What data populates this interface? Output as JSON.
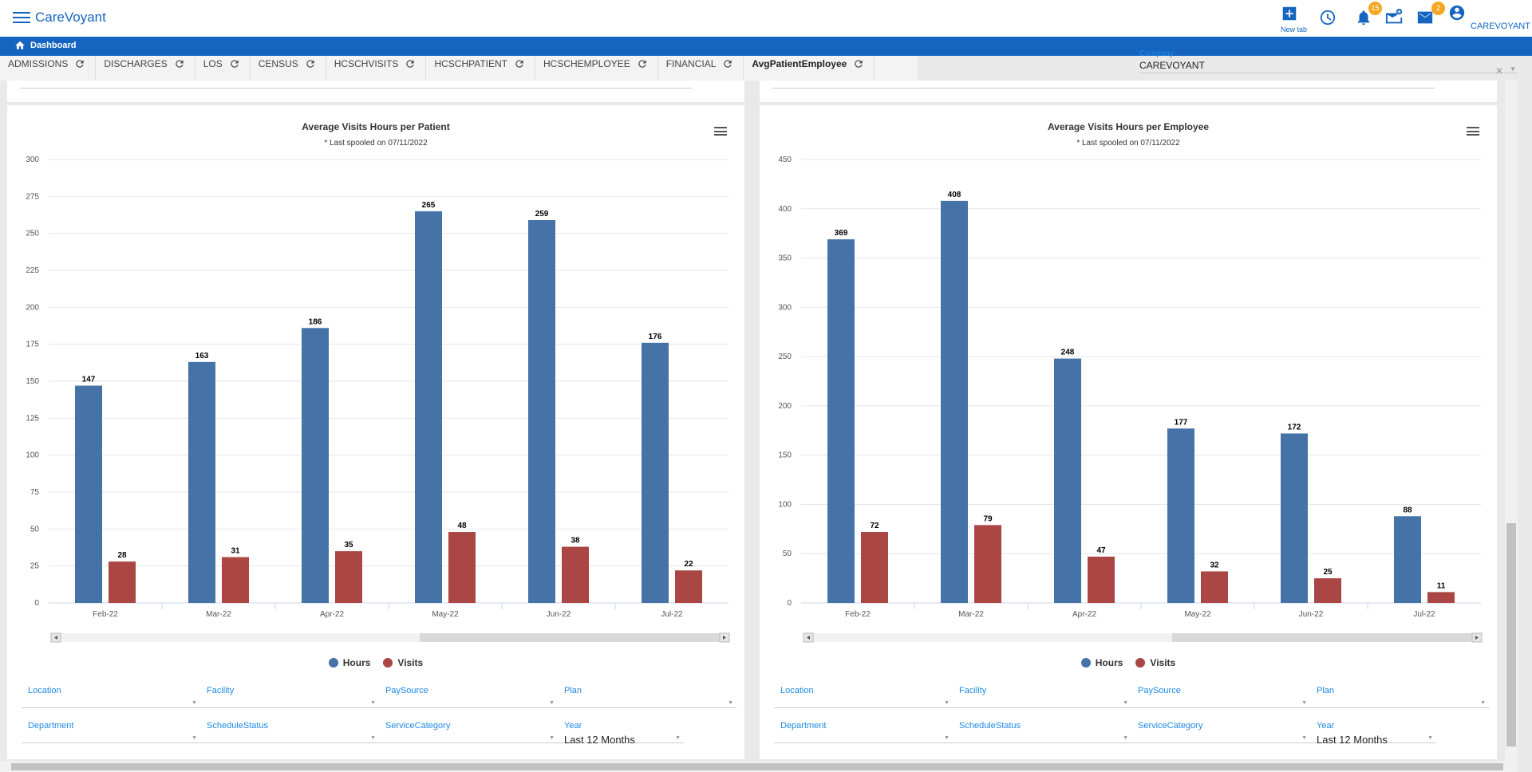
{
  "app": {
    "title": "CareVoyant"
  },
  "topbar": {
    "new_tab_label": "New tab",
    "notifications_count": "15",
    "messages_count": "2",
    "user_label": "CAREVOYANT"
  },
  "breadcrumb": {
    "label": "Dashboard"
  },
  "tabs": [
    {
      "label": "ADMISSIONS"
    },
    {
      "label": "DISCHARGES"
    },
    {
      "label": "LOS"
    },
    {
      "label": "CENSUS"
    },
    {
      "label": "HCSCHVISITS"
    },
    {
      "label": "HCSCHPATIENT"
    },
    {
      "label": "HCSCHEMPLOYEE"
    },
    {
      "label": "FINANCIAL"
    },
    {
      "label": "AvgPatientEmployee"
    }
  ],
  "company": {
    "label": "Company",
    "value": "CAREVOYANT"
  },
  "legend": {
    "hours": "Hours",
    "visits": "Visits"
  },
  "colors": {
    "hours": "#4572a7",
    "visits": "#aa4643",
    "accent": "#1565c0"
  },
  "filters": {
    "row1": [
      "Location",
      "Facility",
      "PaySource",
      "Plan"
    ],
    "row2": [
      "Department",
      "ScheduleStatus",
      "ServiceCategory",
      "Year"
    ],
    "year_value": "Last 12 Months"
  },
  "chart_data": [
    {
      "type": "bar",
      "title": "Average Visits Hours per Patient",
      "subtitle": "* Last spooled on 07/11/2022",
      "categories": [
        "Feb-22",
        "Mar-22",
        "Apr-22",
        "May-22",
        "Jun-22",
        "Jul-22"
      ],
      "series": [
        {
          "name": "Hours",
          "values": [
            147,
            163,
            186,
            265,
            259,
            176
          ]
        },
        {
          "name": "Visits",
          "values": [
            28,
            31,
            35,
            48,
            38,
            22
          ]
        }
      ],
      "yticks": [
        0,
        25,
        50,
        75,
        100,
        125,
        150,
        175,
        200,
        225,
        250,
        275,
        300
      ],
      "ylim": [
        0,
        300
      ],
      "grid": true,
      "legend": "bottom"
    },
    {
      "type": "bar",
      "title": "Average Visits Hours per Employee",
      "subtitle": "* Last spooled on 07/11/2022",
      "categories": [
        "Feb-22",
        "Mar-22",
        "Apr-22",
        "May-22",
        "Jun-22",
        "Jul-22"
      ],
      "series": [
        {
          "name": "Hours",
          "values": [
            369,
            408,
            248,
            177,
            172,
            88
          ]
        },
        {
          "name": "Visits",
          "values": [
            72,
            79,
            47,
            32,
            25,
            11
          ]
        }
      ],
      "yticks": [
        0,
        50,
        100,
        150,
        200,
        250,
        300,
        350,
        400,
        450
      ],
      "ylim": [
        0,
        450
      ],
      "grid": true,
      "legend": "bottom"
    }
  ]
}
